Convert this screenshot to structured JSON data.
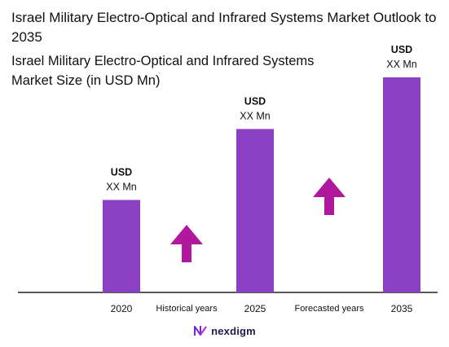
{
  "header": {
    "title": "Israel Military Electro-Optical and Infrared Systems Market Outlook to 2035",
    "subtitle": "Israel Military Electro-Optical and Infrared Systems Market Size (in USD Mn)"
  },
  "chart_data": {
    "type": "bar",
    "categories": [
      "2020",
      "2025",
      "2035"
    ],
    "values": [
      0.43,
      0.76,
      1.0
    ],
    "value_note": "relative bar heights; actual values masked on chart",
    "data_labels": [
      {
        "line1": "USD",
        "line2": "XX Mn"
      },
      {
        "line1": "USD",
        "line2": "XX Mn"
      },
      {
        "line1": "USD",
        "line2": "XX Mn"
      }
    ],
    "period_labels": [
      "Historical years",
      "Forecasted years"
    ],
    "bar_color": "#8b3fc2",
    "arrow_color": "#b0189e",
    "grid": false,
    "legend": "none"
  },
  "footer": {
    "brand": "nexdigm",
    "logo_icon": "nexdigm-logo-icon"
  }
}
